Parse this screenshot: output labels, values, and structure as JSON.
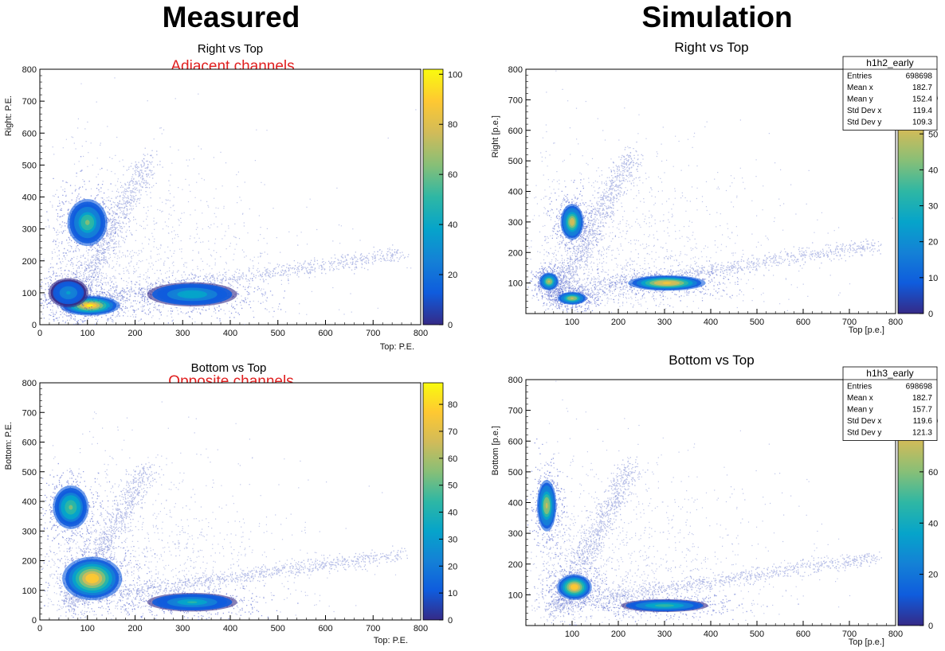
{
  "headings": {
    "left": "Measured",
    "right": "Simulation"
  },
  "palette": [
    "#352a87",
    "#0f5cdd",
    "#1481d6",
    "#06a4ca",
    "#2eb7a4",
    "#87bf77",
    "#d1bb59",
    "#fec832",
    "#f9fb0e"
  ],
  "chart_data": [
    {
      "type": "heatmap",
      "title": "Right vs Top",
      "annotation": "Adjacent channels",
      "xlabel": "Top: P.E.",
      "ylabel": "Right: P.E.",
      "xlim": [
        0,
        800
      ],
      "ylim": [
        0,
        800
      ],
      "x_ticks": [
        "0",
        "100",
        "200",
        "300",
        "400",
        "500",
        "600",
        "700",
        "800"
      ],
      "y_ticks": [
        "0",
        "100",
        "200",
        "300",
        "400",
        "500",
        "600",
        "700",
        "800"
      ],
      "z_ticks": [
        "0",
        "20",
        "40",
        "60",
        "80",
        "100"
      ],
      "zlim": [
        0,
        102
      ],
      "clusters": [
        {
          "x": 100,
          "y": 320,
          "sx": 20,
          "sy": 35,
          "peak": 60
        },
        {
          "x": 105,
          "y": 60,
          "sx": 30,
          "sy": 15,
          "peak": 100
        },
        {
          "x": 60,
          "y": 100,
          "sx": 20,
          "sy": 22,
          "peak": 35
        },
        {
          "x": 320,
          "y": 95,
          "sx": 45,
          "sy": 18,
          "peak": 45
        }
      ]
    },
    {
      "type": "heatmap",
      "title": "Right vs Top",
      "xlabel": "Top [p.e.]",
      "ylabel": "Right [p.e.]",
      "xlim": [
        0,
        800
      ],
      "ylim": [
        0,
        800
      ],
      "x_ticks": [
        "100",
        "200",
        "300",
        "400",
        "500",
        "600",
        "700",
        "800"
      ],
      "y_ticks": [
        "100",
        "200",
        "300",
        "400",
        "500",
        "600",
        "700",
        "800"
      ],
      "z_ticks": [
        "0",
        "10",
        "20",
        "30",
        "40",
        "50",
        "60"
      ],
      "zlim": [
        0,
        68
      ],
      "stats": {
        "name": "h1h2_early",
        "rows": [
          [
            "Entries",
            "698698"
          ],
          [
            "Mean x",
            "182.7"
          ],
          [
            "Mean y",
            "152.4"
          ],
          [
            "Std Dev x",
            "119.4"
          ],
          [
            "Std Dev y",
            "109.3"
          ]
        ]
      },
      "clusters": [
        {
          "x": 100,
          "y": 300,
          "sx": 12,
          "sy": 28,
          "peak": 55
        },
        {
          "x": 50,
          "y": 105,
          "sx": 10,
          "sy": 14,
          "peak": 50
        },
        {
          "x": 100,
          "y": 50,
          "sx": 15,
          "sy": 10,
          "peak": 50
        },
        {
          "x": 305,
          "y": 100,
          "sx": 40,
          "sy": 12,
          "peak": 60
        }
      ]
    },
    {
      "type": "heatmap",
      "title": "Bottom vs Top",
      "annotation": "Opposite channels",
      "xlabel": "Top: P.E.",
      "ylabel": "Bottom: P.E.",
      "xlim": [
        0,
        800
      ],
      "ylim": [
        0,
        800
      ],
      "x_ticks": [
        "0",
        "100",
        "200",
        "300",
        "400",
        "500",
        "600",
        "700",
        "800"
      ],
      "y_ticks": [
        "0",
        "100",
        "200",
        "300",
        "400",
        "500",
        "600",
        "700",
        "800"
      ],
      "z_ticks": [
        "0",
        "10",
        "20",
        "30",
        "40",
        "50",
        "60",
        "70",
        "80"
      ],
      "zlim": [
        0,
        88
      ],
      "clusters": [
        {
          "x": 65,
          "y": 380,
          "sx": 18,
          "sy": 35,
          "peak": 55
        },
        {
          "x": 110,
          "y": 140,
          "sx": 30,
          "sy": 35,
          "peak": 80
        },
        {
          "x": 320,
          "y": 60,
          "sx": 45,
          "sy": 15,
          "peak": 40
        }
      ]
    },
    {
      "type": "heatmap",
      "title": "Bottom vs Top",
      "xlabel": "Top [p.e.]",
      "ylabel": "Bottom [p.e.]",
      "xlim": [
        0,
        800
      ],
      "ylim": [
        0,
        800
      ],
      "x_ticks": [
        "100",
        "200",
        "300",
        "400",
        "500",
        "600",
        "700",
        "800"
      ],
      "y_ticks": [
        "100",
        "200",
        "300",
        "400",
        "500",
        "600",
        "700",
        "800"
      ],
      "z_ticks": [
        "0",
        "20",
        "40",
        "60",
        "80"
      ],
      "zlim": [
        0,
        96
      ],
      "stats": {
        "name": "h1h3_early",
        "rows": [
          [
            "Entries",
            "698698"
          ],
          [
            "Mean x",
            "182.7"
          ],
          [
            "Mean y",
            "157.7"
          ],
          [
            "Std Dev x",
            "119.6"
          ],
          [
            "Std Dev y",
            "121.3"
          ]
        ]
      },
      "clusters": [
        {
          "x": 45,
          "y": 390,
          "sx": 10,
          "sy": 40,
          "peak": 70
        },
        {
          "x": 105,
          "y": 125,
          "sx": 18,
          "sy": 20,
          "peak": 90
        },
        {
          "x": 300,
          "y": 65,
          "sx": 45,
          "sy": 10,
          "peak": 50
        }
      ]
    }
  ]
}
